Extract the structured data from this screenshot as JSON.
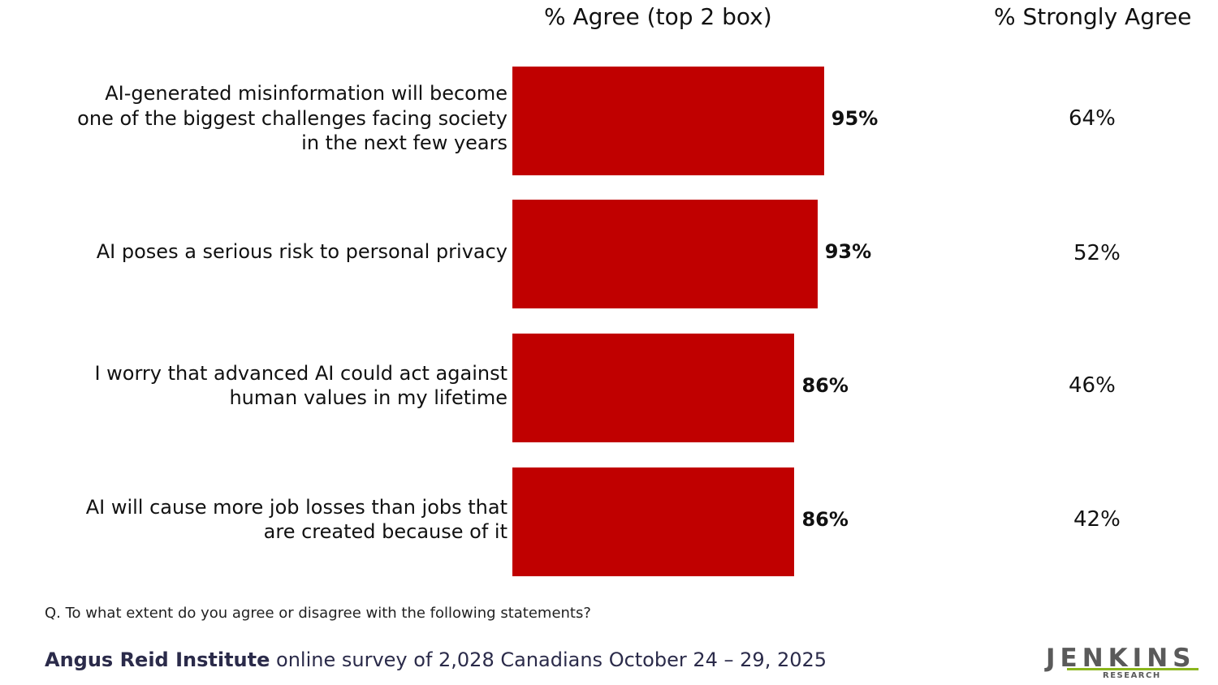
{
  "header": {
    "agree_label": "% Agree (top 2 box)",
    "strongly_label": "% Strongly Agree"
  },
  "chart_data": {
    "type": "bar",
    "orientation": "horizontal",
    "categories": [
      "AI-generated misinformation will become one of the biggest challenges facing society in the next few years",
      "AI poses a serious risk to personal privacy",
      "I worry that advanced AI could act against human values in my lifetime",
      "AI will cause more job losses than jobs that are created because of it"
    ],
    "category_lines": [
      [
        "AI-generated misinformation will become",
        "one of the biggest challenges facing society",
        "in the next few years"
      ],
      [
        "AI poses a serious risk to personal privacy"
      ],
      [
        "I worry that advanced AI could act against",
        "human values in my lifetime"
      ],
      [
        "AI will cause more job losses than jobs that",
        "are created because of it"
      ]
    ],
    "series": [
      {
        "name": "% Agree (top 2 box)",
        "values": [
          95,
          93,
          86,
          86
        ],
        "labels": [
          "95%",
          "93%",
          "86%",
          "86%"
        ]
      },
      {
        "name": "% Strongly Agree",
        "values": [
          64,
          52,
          46,
          42
        ],
        "labels": [
          "64%",
          "52%",
          "46%",
          "42%"
        ]
      }
    ],
    "bar_color": "#c00000",
    "grid": false
  },
  "footer": {
    "question": "Q. To what extent do you agree or disagree with the following statements?",
    "source_org": "Angus Reid Institute",
    "source_rest": " online survey of 2,028 Canadians October 24 – 29, 2025"
  },
  "logo": {
    "name": "JENKINS",
    "sub": "RESEARCH",
    "accent": "#8bb61d"
  }
}
